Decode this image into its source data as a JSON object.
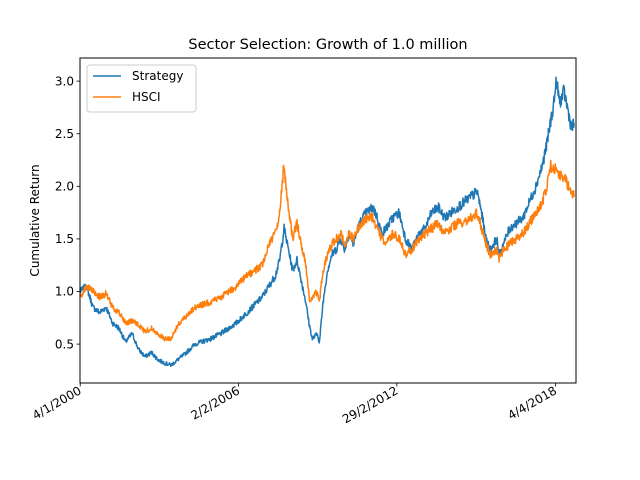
{
  "chart_data": {
    "type": "line",
    "title": "Sector Selection: Growth of 1.0 million",
    "xlabel": "",
    "ylabel": "Cumulative Return",
    "ylim": [
      0.13,
      3.22
    ],
    "xlim": [
      "2000-01-01",
      "2019-01-15"
    ],
    "yticks": [
      0.5,
      1.0,
      1.5,
      2.0,
      2.5,
      3.0
    ],
    "ytick_labels": [
      "0.5",
      "1.0",
      "1.5",
      "2.0",
      "2.5",
      "3.0"
    ],
    "xticks": [
      "2000-01-04",
      "2006-02-02",
      "2012-02-29",
      "2018-04-04"
    ],
    "xtick_labels": [
      "4/1/2000",
      "2/2/2006",
      "29/2/2012",
      "4/4/2018"
    ],
    "grid": false,
    "legend_position": "top-left",
    "series": [
      {
        "name": "Strategy",
        "color": "#1f77b4",
        "x": [
          "2000-01-04",
          "2000-04-01",
          "2000-07-01",
          "2000-10-01",
          "2001-01-01",
          "2001-04-01",
          "2001-07-01",
          "2001-10-01",
          "2002-01-01",
          "2002-04-01",
          "2002-07-01",
          "2002-10-01",
          "2003-01-01",
          "2003-04-01",
          "2003-07-01",
          "2003-10-01",
          "2004-01-01",
          "2004-06-01",
          "2005-01-01",
          "2005-06-01",
          "2006-01-01",
          "2006-06-01",
          "2007-01-01",
          "2007-04-01",
          "2007-07-01",
          "2007-09-01",
          "2007-11-01",
          "2008-01-01",
          "2008-03-01",
          "2008-05-01",
          "2008-07-01",
          "2008-09-01",
          "2008-10-15",
          "2008-12-01",
          "2009-02-15",
          "2009-03-09",
          "2009-05-01",
          "2009-07-01",
          "2009-09-01",
          "2009-11-01",
          "2010-01-01",
          "2010-03-01",
          "2010-05-01",
          "2010-07-01",
          "2010-09-01",
          "2010-11-01",
          "2011-01-01",
          "2011-04-01",
          "2011-06-01",
          "2011-08-01",
          "2011-10-01",
          "2012-01-01",
          "2012-04-01",
          "2012-07-01",
          "2012-10-01",
          "2013-01-01",
          "2013-04-01",
          "2013-07-01",
          "2013-10-01",
          "2014-01-01",
          "2014-04-01",
          "2014-07-01",
          "2014-10-01",
          "2015-01-01",
          "2015-04-01",
          "2015-06-01",
          "2015-08-01",
          "2015-10-01",
          "2016-01-01",
          "2016-02-01",
          "2016-04-01",
          "2016-07-01",
          "2016-10-01",
          "2017-01-01",
          "2017-04-01",
          "2017-07-01",
          "2017-10-01",
          "2017-12-01",
          "2018-01-20",
          "2018-03-01",
          "2018-04-15",
          "2018-06-01",
          "2018-08-01",
          "2018-10-01",
          "2018-11-15",
          "2018-12-20"
        ],
        "values": [
          1.0,
          1.05,
          0.85,
          0.8,
          0.85,
          0.7,
          0.65,
          0.52,
          0.6,
          0.45,
          0.38,
          0.42,
          0.35,
          0.32,
          0.3,
          0.35,
          0.4,
          0.5,
          0.55,
          0.6,
          0.7,
          0.8,
          0.95,
          1.05,
          1.15,
          1.3,
          1.6,
          1.4,
          1.2,
          1.3,
          1.1,
          0.9,
          0.7,
          0.55,
          0.6,
          0.5,
          0.9,
          1.2,
          1.35,
          1.4,
          1.5,
          1.4,
          1.55,
          1.45,
          1.6,
          1.7,
          1.75,
          1.8,
          1.7,
          1.55,
          1.6,
          1.7,
          1.75,
          1.5,
          1.4,
          1.55,
          1.6,
          1.75,
          1.8,
          1.7,
          1.75,
          1.8,
          1.85,
          1.9,
          1.95,
          1.75,
          1.5,
          1.4,
          1.5,
          1.35,
          1.45,
          1.6,
          1.65,
          1.7,
          1.85,
          2.0,
          2.2,
          2.4,
          2.6,
          2.75,
          3.0,
          2.8,
          2.9,
          2.7,
          2.55,
          2.6
        ]
      },
      {
        "name": "HSCI",
        "color": "#ff7f0e",
        "x": [
          "2000-01-04",
          "2000-04-01",
          "2000-07-01",
          "2000-10-01",
          "2001-01-01",
          "2001-04-01",
          "2001-07-01",
          "2001-10-01",
          "2002-01-01",
          "2002-04-01",
          "2002-07-01",
          "2002-10-01",
          "2003-01-01",
          "2003-04-01",
          "2003-07-01",
          "2003-10-01",
          "2004-01-01",
          "2004-06-01",
          "2005-01-01",
          "2005-06-01",
          "2006-01-01",
          "2006-06-01",
          "2007-01-01",
          "2007-04-01",
          "2007-07-01",
          "2007-09-01",
          "2007-10-30",
          "2008-01-01",
          "2008-03-01",
          "2008-05-01",
          "2008-07-01",
          "2008-09-01",
          "2008-10-27",
          "2008-12-01",
          "2009-02-15",
          "2009-03-09",
          "2009-05-01",
          "2009-07-01",
          "2009-09-01",
          "2009-11-01",
          "2010-01-01",
          "2010-03-01",
          "2010-05-01",
          "2010-07-01",
          "2010-09-01",
          "2010-11-01",
          "2011-01-01",
          "2011-04-01",
          "2011-06-01",
          "2011-08-01",
          "2011-10-01",
          "2012-01-01",
          "2012-04-01",
          "2012-07-01",
          "2012-10-01",
          "2013-01-01",
          "2013-04-01",
          "2013-07-01",
          "2013-10-01",
          "2014-01-01",
          "2014-04-01",
          "2014-07-01",
          "2014-10-01",
          "2015-01-01",
          "2015-04-01",
          "2015-06-01",
          "2015-08-01",
          "2015-10-01",
          "2016-01-01",
          "2016-02-01",
          "2016-04-01",
          "2016-07-01",
          "2016-10-01",
          "2017-01-01",
          "2017-04-01",
          "2017-07-01",
          "2017-10-01",
          "2017-12-01",
          "2018-01-20",
          "2018-03-01",
          "2018-04-15",
          "2018-06-01",
          "2018-08-01",
          "2018-10-01",
          "2018-11-15",
          "2018-12-20"
        ],
        "values": [
          0.95,
          1.05,
          1.0,
          0.95,
          0.98,
          0.85,
          0.8,
          0.7,
          0.72,
          0.68,
          0.62,
          0.65,
          0.6,
          0.55,
          0.55,
          0.68,
          0.75,
          0.85,
          0.9,
          0.95,
          1.05,
          1.15,
          1.25,
          1.45,
          1.55,
          1.75,
          2.2,
          1.8,
          1.5,
          1.65,
          1.45,
          1.25,
          0.9,
          0.95,
          1.0,
          0.9,
          1.2,
          1.35,
          1.45,
          1.5,
          1.55,
          1.45,
          1.55,
          1.5,
          1.6,
          1.65,
          1.7,
          1.7,
          1.6,
          1.5,
          1.45,
          1.55,
          1.5,
          1.35,
          1.4,
          1.5,
          1.55,
          1.6,
          1.65,
          1.55,
          1.6,
          1.65,
          1.65,
          1.7,
          1.75,
          1.6,
          1.45,
          1.35,
          1.4,
          1.3,
          1.4,
          1.45,
          1.5,
          1.55,
          1.65,
          1.75,
          1.85,
          2.0,
          2.2,
          2.15,
          2.2,
          2.1,
          2.1,
          2.0,
          1.95,
          1.9
        ]
      }
    ]
  }
}
